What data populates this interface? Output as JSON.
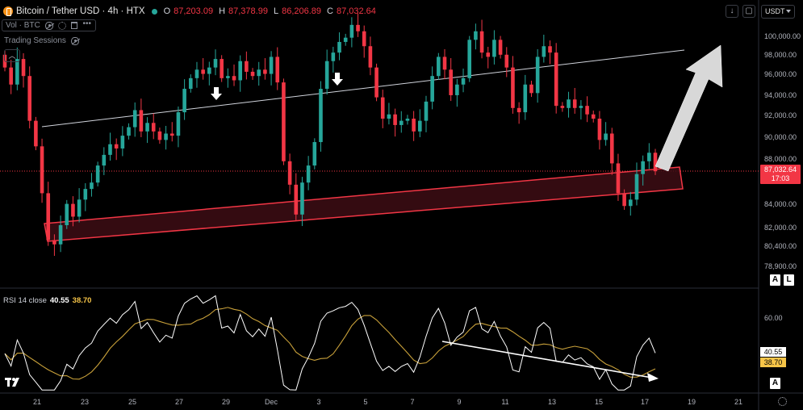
{
  "header": {
    "symbol": "Bitcoin / Tether USD · 4h · HTX",
    "ohlc": [
      {
        "key": "O",
        "value": "87,203.09"
      },
      {
        "key": "H",
        "value": "87,378.99"
      },
      {
        "key": "L",
        "value": "86,206.89"
      },
      {
        "key": "C",
        "value": "87,032.64"
      }
    ],
    "volume_label": "Vol · BTC",
    "sessions_label": "Trading Sessions",
    "currency": "USDT"
  },
  "price_axis": {
    "labels": [
      "100,000.00",
      "98,000.00",
      "96,000.00",
      "94,000.00",
      "92,000.00",
      "90,000.00",
      "88,000.00",
      "84,000.00",
      "82,000.00",
      "80,400.00",
      "78,900.00"
    ],
    "current_price": "87,032.64",
    "countdown": "17:03"
  },
  "rsi": {
    "label": "RSI 14 close",
    "value": "40.55",
    "ma_value": "38.70",
    "axis_label": "60.00"
  },
  "time_axis": [
    "21",
    "23",
    "25",
    "27",
    "29",
    "Dec",
    "3",
    "5",
    "7",
    "9",
    "11",
    "13",
    "15",
    "17",
    "19",
    "21"
  ],
  "scale_buttons": {
    "auto": "A",
    "log": "L"
  },
  "colors": {
    "up": "#26a69a",
    "down": "#f23645",
    "rsi": "#ffffff",
    "rsi_ma": "#c9a13a",
    "channel": "#f23645"
  },
  "chart_data": {
    "type": "candlestick",
    "timeframe": "4h",
    "closes": [
      91900,
      91100,
      92300,
      91500,
      89400,
      88200,
      86000,
      83800,
      83600,
      84500,
      85500,
      84900,
      85700,
      86200,
      86500,
      87300,
      87800,
      88300,
      88100,
      88700,
      89100,
      89900,
      88900,
      89300,
      88900,
      88500,
      88800,
      88700,
      89800,
      90900,
      91400,
      91800,
      91600,
      91900,
      92300,
      91400,
      91500,
      91300,
      92200,
      91700,
      91500,
      91800,
      91600,
      92400,
      91200,
      87500,
      86400,
      85000,
      86500,
      87300,
      88400,
      90900,
      92200,
      92600,
      93100,
      93300,
      93900,
      93600,
      92900,
      91900,
      90500,
      89500,
      89700,
      89200,
      89400,
      89500,
      88900,
      89400,
      90300,
      91500,
      92400,
      91800,
      90600,
      91100,
      91400,
      93200,
      93600,
      92600,
      92400,
      93200,
      92500,
      91900,
      90000,
      89800,
      91100,
      90700,
      92400,
      92900,
      92600,
      90100,
      90000,
      90400,
      90000,
      90100,
      89700,
      89500,
      88500,
      88800,
      87400,
      86000,
      85400,
      85700,
      86900,
      87500,
      87900,
      87032
    ],
    "rsi_visible_axis_level": 60
  }
}
